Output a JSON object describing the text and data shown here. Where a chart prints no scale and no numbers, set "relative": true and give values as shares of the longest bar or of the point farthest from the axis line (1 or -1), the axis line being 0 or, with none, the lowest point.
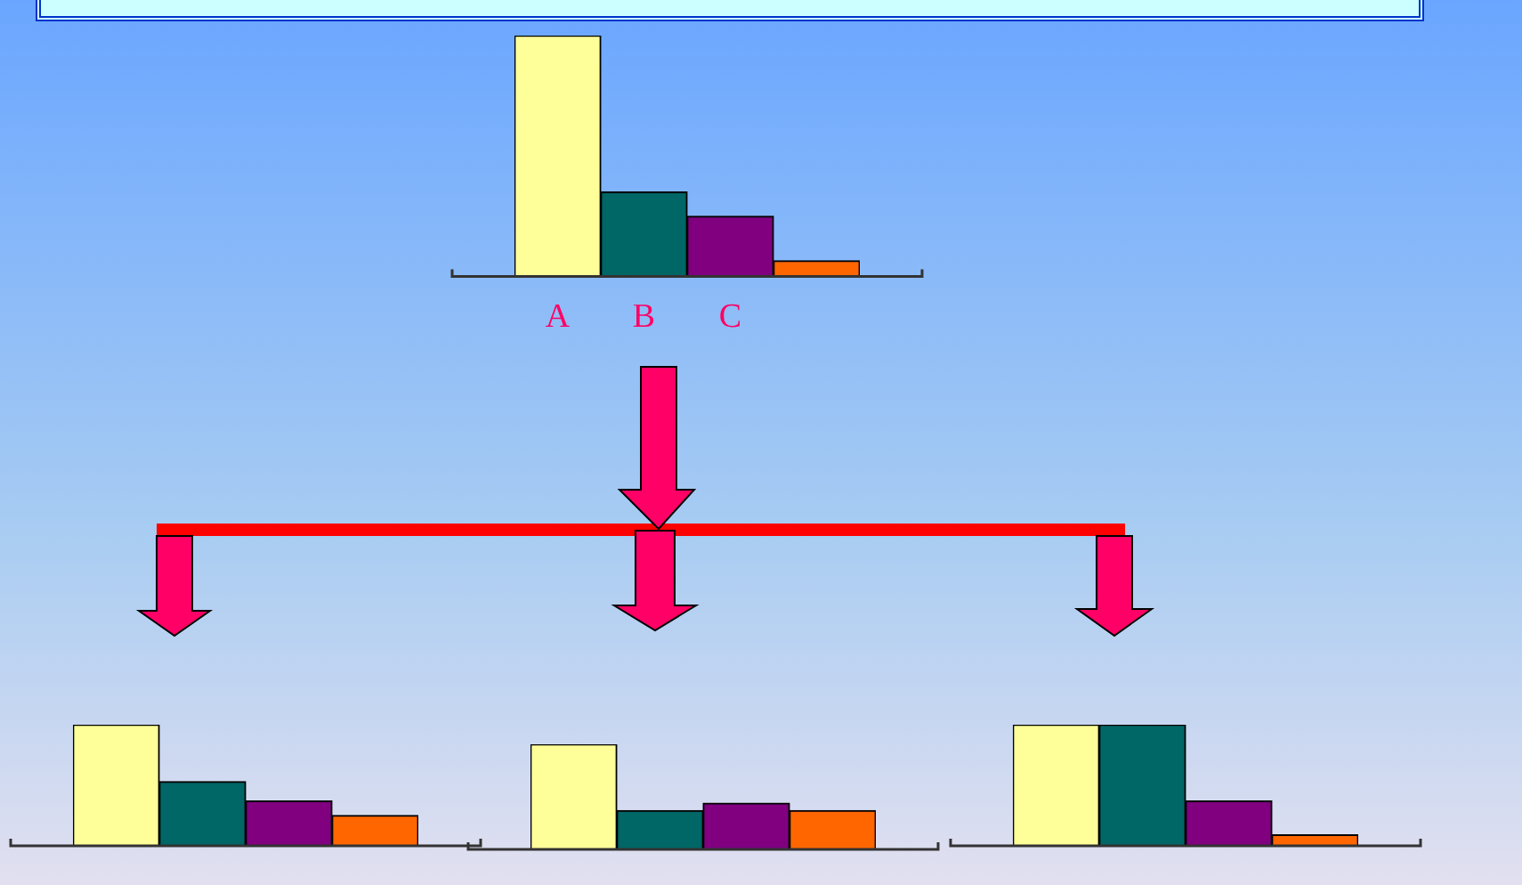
{
  "chart_data": [
    {
      "type": "bar",
      "relative": true,
      "categories": [
        "A",
        "B",
        "C",
        null
      ],
      "values": [
        1,
        0.35,
        0.25,
        0.065
      ],
      "colors": [
        "#ffff99",
        "#006666",
        "#800080",
        "#ff6600"
      ]
    },
    {
      "type": "bar",
      "relative": true,
      "categories": [
        null,
        null,
        null,
        null
      ],
      "values": [
        1,
        0.53,
        0.37,
        0.25
      ],
      "colors": [
        "#ffff99",
        "#006666",
        "#800080",
        "#ff6600"
      ]
    },
    {
      "type": "bar",
      "relative": true,
      "categories": [
        null,
        null,
        null,
        null
      ],
      "values": [
        1,
        0.37,
        0.44,
        0.37
      ],
      "colors": [
        "#ffff99",
        "#006666",
        "#800080",
        "#ff6600"
      ]
    },
    {
      "type": "bar",
      "relative": true,
      "categories": [
        null,
        null,
        null,
        null
      ],
      "values": [
        1,
        1,
        0.37,
        0.09
      ],
      "colors": [
        "#ffff99",
        "#006666",
        "#800080",
        "#ff6600"
      ]
    }
  ]
}
